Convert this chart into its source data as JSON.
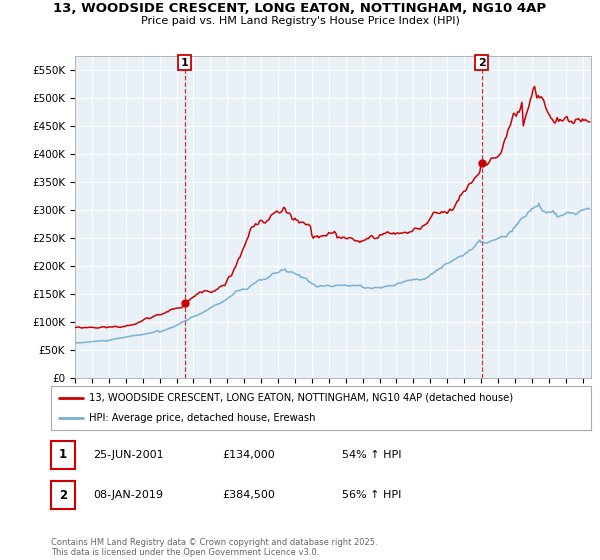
{
  "title_line1": "13, WOODSIDE CRESCENT, LONG EATON, NOTTINGHAM, NG10 4AP",
  "title_line2": "Price paid vs. HM Land Registry's House Price Index (HPI)",
  "ylim": [
    0,
    575000
  ],
  "yticks": [
    0,
    50000,
    100000,
    150000,
    200000,
    250000,
    300000,
    350000,
    400000,
    450000,
    500000,
    550000
  ],
  "ytick_labels": [
    "£0",
    "£50K",
    "£100K",
    "£150K",
    "£200K",
    "£250K",
    "£300K",
    "£350K",
    "£400K",
    "£450K",
    "£500K",
    "£550K"
  ],
  "purchase1_date": 2001.49,
  "purchase1_price": 134000,
  "purchase2_date": 2019.03,
  "purchase2_price": 384500,
  "legend_label1": "13, WOODSIDE CRESCENT, LONG EATON, NOTTINGHAM, NG10 4AP (detached house)",
  "legend_label2": "HPI: Average price, detached house, Erewash",
  "annotation1_text": "25-JUN-2001          £134,000          54% ↑ HPI",
  "annotation2_text": "08-JAN-2019          £384,500          56% ↑ HPI",
  "line_color_property": "#cc0000",
  "line_color_hpi": "#7ab0d4",
  "background_color": "#ffffff",
  "footer_text": "Contains HM Land Registry data © Crown copyright and database right 2025.\nThis data is licensed under the Open Government Licence v3.0.",
  "xmin": 1995.0,
  "xmax": 2025.5
}
